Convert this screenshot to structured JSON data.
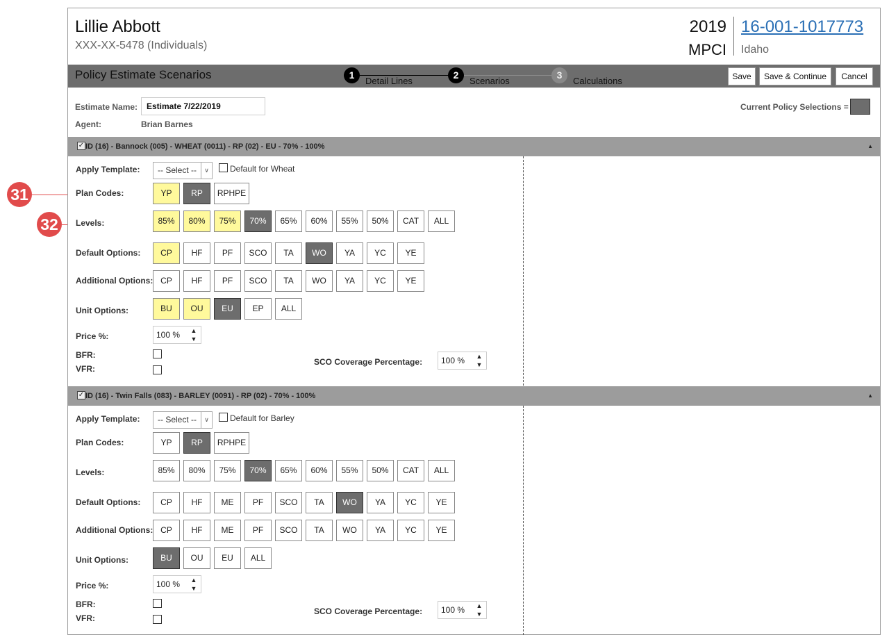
{
  "callouts": [
    "31",
    "32"
  ],
  "header": {
    "name": "Lillie Abbott",
    "ssn": "XXX-XX-5478 (Individuals)",
    "year": "2019",
    "type": "MPCI",
    "policy": "16-001-1017773",
    "state": "Idaho"
  },
  "toolbar": {
    "title": "Policy Estimate Scenarios",
    "steps": [
      {
        "num": "1",
        "label": "Detail Lines"
      },
      {
        "num": "2",
        "label": "Scenarios"
      },
      {
        "num": "3",
        "label": "Calculations"
      }
    ],
    "save": "Save",
    "save_continue": "Save & Continue",
    "cancel": "Cancel"
  },
  "estimate": {
    "name_label": "Estimate Name:",
    "name_value": "Estimate 7/22/2019",
    "agent_label": "Agent:",
    "agent_value": "Brian Barnes",
    "current_selections_label": "Current Policy Selections ="
  },
  "colors": {
    "selected_current": "#6d6d6d",
    "selected_scenario": "#fff99c"
  },
  "labels": {
    "apply_template": "Apply Template:",
    "select_placeholder": "-- Select --",
    "plan_codes": "Plan Codes:",
    "levels": "Levels:",
    "default_options": "Default Options:",
    "additional_options": "Additional Options:",
    "unit_options": "Unit Options:",
    "price": "Price %:",
    "bfr": "BFR:",
    "vfr": "VFR:",
    "sco_coverage": "SCO Coverage Percentage:"
  },
  "sections": [
    {
      "title": "ID (16) - Bannock (005) - WHEAT (0011) - RP (02) - EU - 70% - 100%",
      "default_for": "Default for Wheat",
      "plan_codes": [
        "YP",
        "RP",
        "RPHPE"
      ],
      "levels": [
        "85%",
        "80%",
        "75%",
        "70%",
        "65%",
        "60%",
        "55%",
        "50%",
        "CAT",
        "ALL"
      ],
      "default_options": [
        "CP",
        "HF",
        "PF",
        "SCO",
        "TA",
        "WO",
        "YA",
        "YC",
        "YE"
      ],
      "additional_options": [
        "CP",
        "HF",
        "PF",
        "SCO",
        "TA",
        "WO",
        "YA",
        "YC",
        "YE"
      ],
      "unit_options": [
        "BU",
        "OU",
        "EU",
        "EP",
        "ALL"
      ],
      "price": "100 %",
      "sco": "100 %"
    },
    {
      "title": "ID (16) - Twin Falls (083) - BARLEY (0091) - RP (02) - 70% - 100%",
      "default_for": "Default for Barley",
      "plan_codes": [
        "YP",
        "RP",
        "RPHPE"
      ],
      "levels": [
        "85%",
        "80%",
        "75%",
        "70%",
        "65%",
        "60%",
        "55%",
        "50%",
        "CAT",
        "ALL"
      ],
      "default_options": [
        "CP",
        "HF",
        "ME",
        "PF",
        "SCO",
        "TA",
        "WO",
        "YA",
        "YC",
        "YE"
      ],
      "additional_options": [
        "CP",
        "HF",
        "ME",
        "PF",
        "SCO",
        "TA",
        "WO",
        "YA",
        "YC",
        "YE"
      ],
      "unit_options": [
        "BU",
        "OU",
        "EU",
        "ALL"
      ],
      "price": "100 %",
      "sco": "100 %"
    }
  ]
}
